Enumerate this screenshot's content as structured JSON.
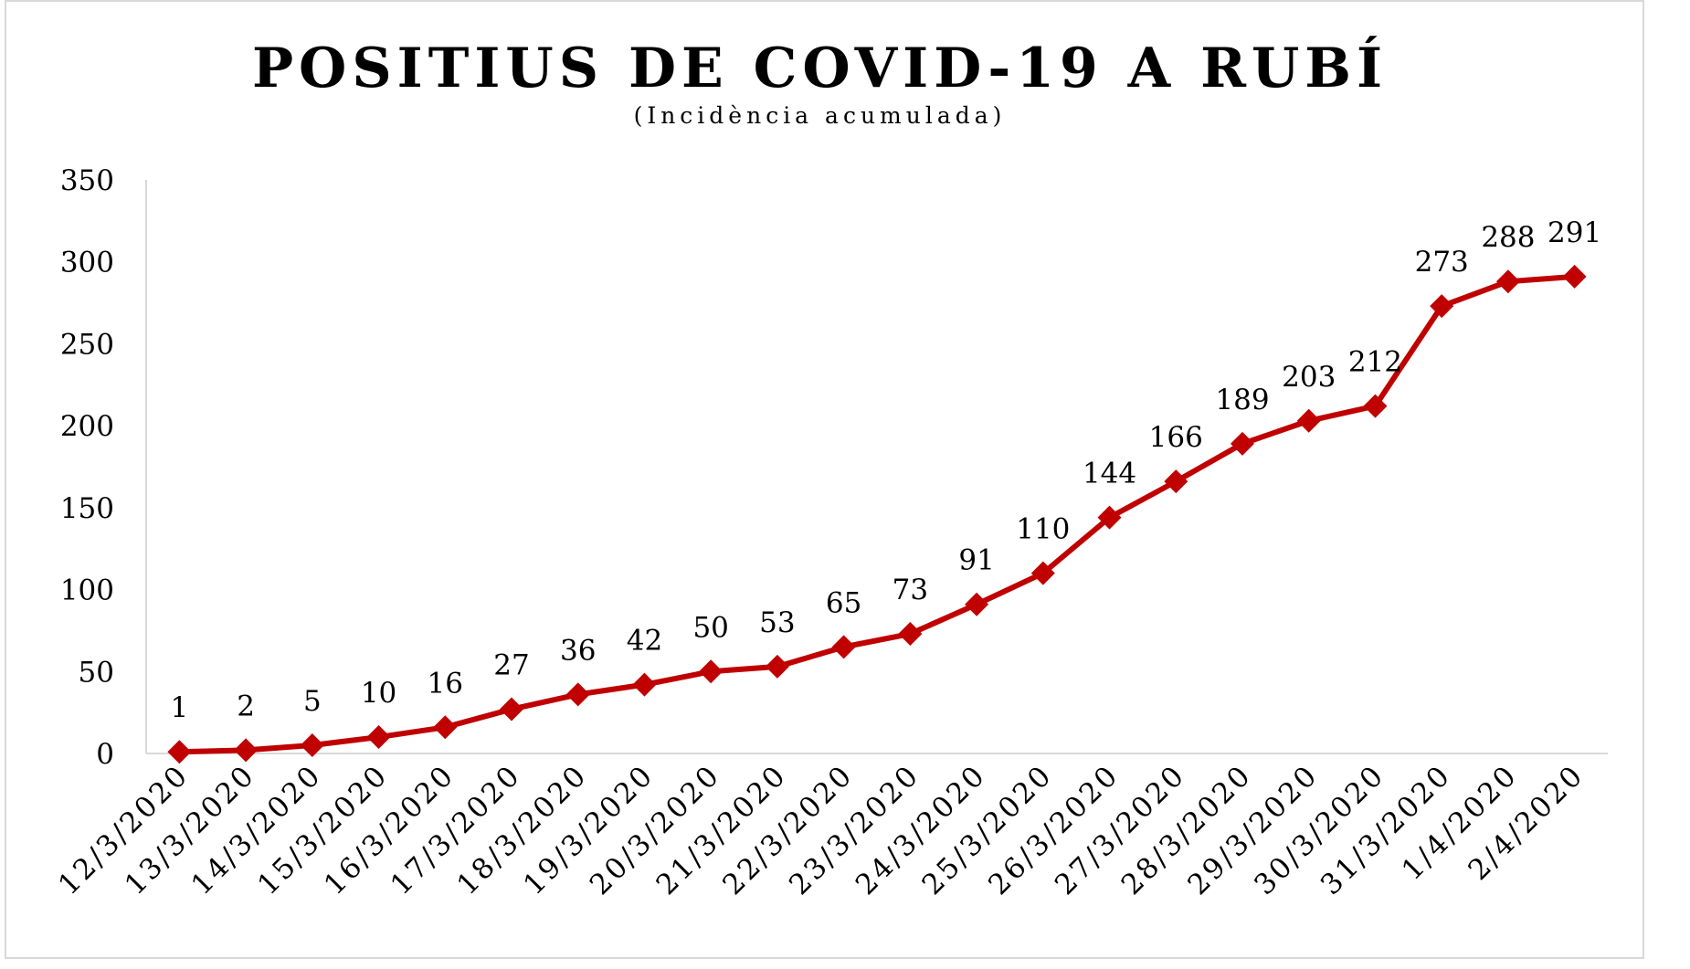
{
  "chart_data": {
    "type": "line",
    "title": "POSITIUS DE COVID-19 A RUBÍ",
    "subtitle": "(Incidència acumulada)",
    "categories": [
      "12/3/2020",
      "13/3/2020",
      "14/3/2020",
      "15/3/2020",
      "16/3/2020",
      "17/3/2020",
      "18/3/2020",
      "19/3/2020",
      "20/3/2020",
      "21/3/2020",
      "22/3/2020",
      "23/3/2020",
      "24/3/2020",
      "25/3/2020",
      "26/3/2020",
      "27/3/2020",
      "28/3/2020",
      "29/3/2020",
      "30/3/2020",
      "31/3/2020",
      "1/4/2020",
      "2/4/2020"
    ],
    "series": [
      {
        "values": [
          1,
          2,
          5,
          10,
          16,
          27,
          36,
          42,
          50,
          53,
          65,
          73,
          91,
          110,
          144,
          166,
          189,
          203,
          212,
          273,
          288,
          291
        ]
      }
    ],
    "ylim": [
      0,
      350
    ],
    "yticks": [
      0,
      50,
      100,
      150,
      200,
      250,
      300,
      350
    ],
    "grid": false,
    "legend": "none",
    "colors": {
      "line": "#c00000",
      "marker": "#c00000",
      "axis": "#d9d9d9"
    }
  }
}
